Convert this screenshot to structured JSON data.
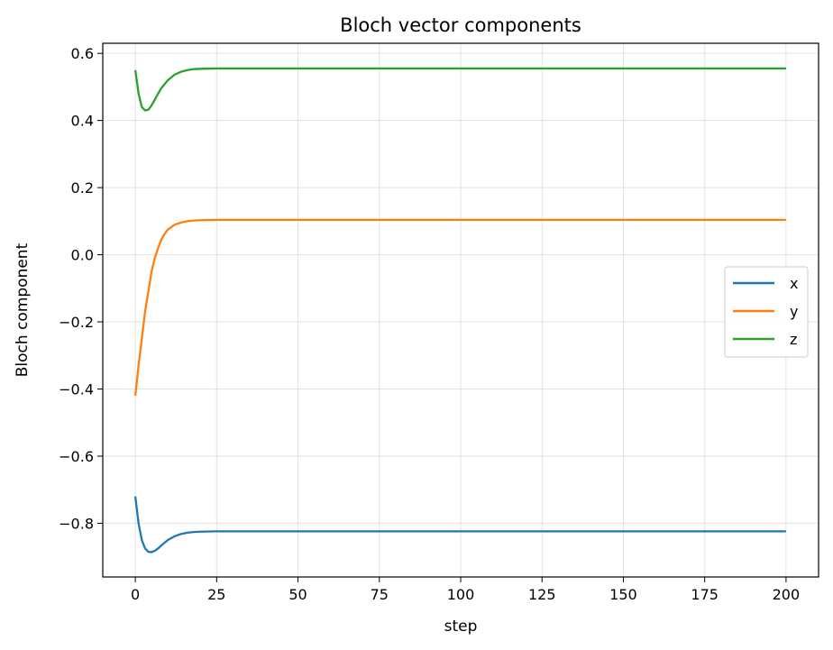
{
  "chart_data": {
    "type": "line",
    "title": "Bloch vector components",
    "xlabel": "step",
    "ylabel": "Bloch component",
    "xlim": [
      -10,
      210
    ],
    "ylim": [
      -0.96,
      0.63
    ],
    "xticks": [
      0,
      25,
      50,
      75,
      100,
      125,
      150,
      175,
      200
    ],
    "xtick_labels": [
      "0",
      "25",
      "50",
      "75",
      "100",
      "125",
      "150",
      "175",
      "200"
    ],
    "yticks": [
      -0.8,
      -0.6,
      -0.4,
      -0.2,
      0.0,
      0.2,
      0.4,
      0.6
    ],
    "ytick_labels": [
      "−0.8",
      "−0.6",
      "−0.4",
      "−0.2",
      "0.0",
      "0.2",
      "0.4",
      "0.6"
    ],
    "grid": true,
    "legend_position": "center-right",
    "series": [
      {
        "name": "x",
        "color": "#1f77b4",
        "x": [
          0,
          1,
          2,
          3,
          4,
          5,
          6,
          7,
          8,
          10,
          12,
          14,
          16,
          18,
          20,
          25,
          30,
          40,
          60,
          100,
          150,
          200
        ],
        "y": [
          -0.72,
          -0.8,
          -0.85,
          -0.875,
          -0.885,
          -0.886,
          -0.882,
          -0.875,
          -0.866,
          -0.85,
          -0.839,
          -0.832,
          -0.828,
          -0.826,
          -0.825,
          -0.824,
          -0.824,
          -0.824,
          -0.824,
          -0.824,
          -0.824,
          -0.824
        ]
      },
      {
        "name": "y",
        "color": "#ff7f0e",
        "x": [
          0,
          1,
          2,
          3,
          4,
          5,
          6,
          7,
          8,
          9,
          10,
          12,
          14,
          16,
          18,
          20,
          25,
          30,
          40,
          60,
          100,
          150,
          200
        ],
        "y": [
          -0.42,
          -0.33,
          -0.25,
          -0.17,
          -0.11,
          -0.05,
          -0.01,
          0.02,
          0.045,
          0.062,
          0.075,
          0.089,
          0.096,
          0.1,
          0.102,
          0.103,
          0.104,
          0.104,
          0.104,
          0.104,
          0.104,
          0.104,
          0.104
        ]
      },
      {
        "name": "z",
        "color": "#2ca02c",
        "x": [
          0,
          1,
          2,
          3,
          4,
          5,
          6,
          7,
          8,
          10,
          12,
          14,
          16,
          18,
          20,
          25,
          30,
          40,
          60,
          100,
          150,
          200
        ],
        "y": [
          0.55,
          0.48,
          0.44,
          0.43,
          0.432,
          0.445,
          0.462,
          0.48,
          0.496,
          0.52,
          0.536,
          0.545,
          0.55,
          0.553,
          0.554,
          0.555,
          0.555,
          0.555,
          0.555,
          0.555,
          0.555,
          0.555
        ]
      }
    ]
  }
}
